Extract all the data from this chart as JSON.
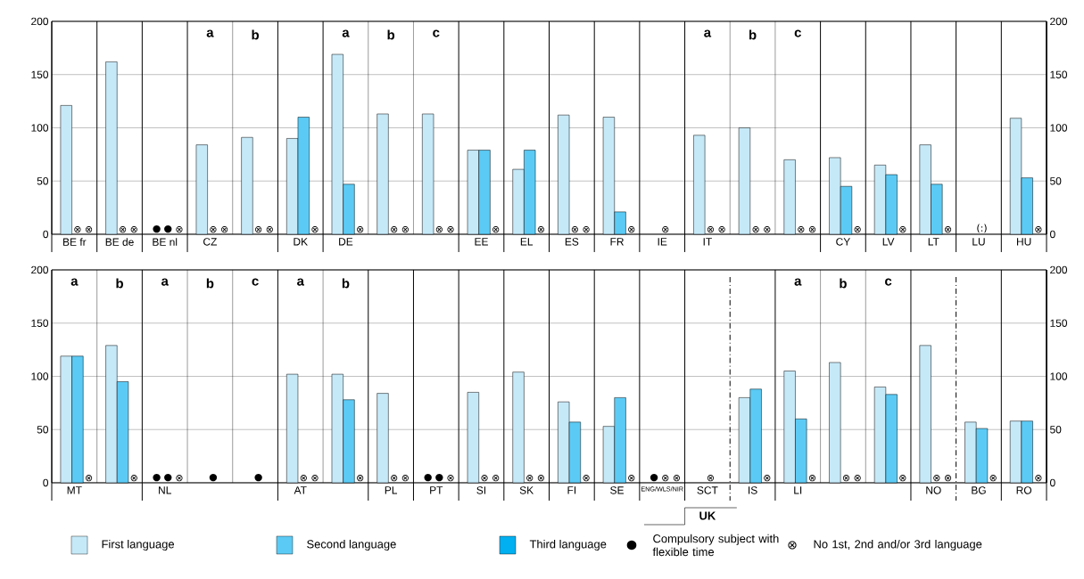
{
  "chart_data": [
    {
      "type": "bar",
      "categories": [
        "BE fr",
        "BE de",
        "BE nl",
        "CZ",
        null,
        "DK",
        "DE",
        null,
        null,
        "EE",
        "EL",
        "ES",
        "FR",
        "IE",
        "IT",
        null,
        null,
        "CY",
        "LV",
        "LT",
        "LU",
        "HU"
      ],
      "series": [
        {
          "color": "#c6e9f8",
          "values": [
            121,
            162,
            null,
            84,
            91,
            90,
            169,
            113,
            113,
            79,
            61,
            112,
            110,
            null,
            93,
            100,
            70,
            72,
            65,
            84,
            null,
            109
          ],
          "value_labels": [
            null,
            null,
            "●",
            null,
            null,
            null,
            null,
            null,
            null,
            null,
            null,
            null,
            null,
            null,
            null,
            null,
            null,
            null,
            null,
            null,
            null,
            null
          ]
        },
        {
          "color": "#5bcbf5",
          "values": [
            null,
            null,
            null,
            null,
            null,
            110,
            47,
            null,
            null,
            79,
            79,
            null,
            21,
            null,
            null,
            null,
            null,
            45,
            56,
            47,
            null,
            53
          ],
          "value_labels": [
            "⊗",
            "⊗",
            "●",
            "⊗",
            "⊗",
            null,
            null,
            "⊗",
            "⊗",
            null,
            null,
            "⊗",
            null,
            "⊗",
            "⊗",
            "⊗",
            "⊗",
            null,
            null,
            null,
            "(:)",
            null
          ]
        },
        {
          "values": [
            null,
            null,
            null,
            null,
            null,
            null,
            null,
            null,
            null,
            null,
            null,
            null,
            null,
            null,
            null,
            null,
            null,
            null,
            null,
            null,
            null,
            null
          ],
          "value_labels": [
            "⊗",
            "⊗",
            "⊗",
            "⊗",
            "⊗",
            "⊗",
            "⊗",
            "⊗",
            "⊗",
            "⊗",
            "⊗",
            "⊗",
            "⊗",
            null,
            "⊗",
            "⊗",
            "⊗",
            "⊗",
            "⊗",
            "⊗",
            null,
            "⊗"
          ]
        }
      ],
      "ylim": [
        0,
        200
      ],
      "yticks": [
        0,
        50,
        100,
        150,
        200
      ],
      "y2lim": [
        0,
        200
      ],
      "y2ticks": [
        0,
        50,
        100,
        150,
        200
      ],
      "grid": true,
      "annotations": [
        "a",
        "b",
        "a",
        "b",
        "c",
        "a",
        "b",
        "c"
      ]
    },
    {
      "type": "bar",
      "categories": [
        "MT",
        null,
        "NL",
        null,
        null,
        "AT",
        null,
        "PL",
        "PT",
        "SI",
        "SK",
        "FI",
        "SE",
        "ENG/WLS/NIR",
        "SCT",
        "IS",
        "LI",
        null,
        null,
        "NO",
        "BG",
        "RO"
      ],
      "series": [
        {
          "name": "First language",
          "color": "#c6e9f8",
          "values": [
            119,
            129,
            null,
            null,
            null,
            102,
            102,
            84,
            null,
            85,
            104,
            76,
            53,
            null,
            null,
            80,
            105,
            113,
            90,
            129,
            57,
            58
          ],
          "value_labels": [
            null,
            null,
            "●",
            null,
            null,
            null,
            null,
            null,
            "●",
            null,
            null,
            null,
            null,
            "●",
            null,
            null,
            null,
            null,
            null,
            null,
            null,
            null
          ]
        },
        {
          "name": "Second language",
          "color": "#5bcbf5",
          "values": [
            119,
            95,
            null,
            null,
            null,
            null,
            78,
            null,
            null,
            null,
            null,
            57,
            80,
            null,
            null,
            88,
            60,
            null,
            83,
            null,
            51,
            58
          ],
          "value_labels": [
            null,
            null,
            "●",
            "●",
            "●",
            "⊗",
            null,
            "⊗",
            "●",
            "⊗",
            "⊗",
            null,
            null,
            "⊗",
            "⊗",
            null,
            null,
            "⊗",
            null,
            "⊗",
            null,
            null
          ]
        },
        {
          "name": "Third language",
          "color": "#00b0f0",
          "values": [
            null,
            null,
            null,
            null,
            null,
            null,
            null,
            null,
            null,
            null,
            null,
            null,
            null,
            null,
            null,
            null,
            null,
            null,
            null,
            null,
            null,
            null
          ],
          "value_labels": [
            "⊗",
            "⊗",
            "⊗",
            null,
            null,
            "⊗",
            "⊗",
            "⊗",
            "⊗",
            "⊗",
            "⊗",
            "⊗",
            "⊗",
            "⊗",
            null,
            "⊗",
            "⊗",
            "⊗",
            "⊗",
            "⊗",
            "⊗",
            "⊗"
          ]
        }
      ],
      "ylim": [
        0,
        200
      ],
      "yticks": [
        0,
        50,
        100,
        150,
        200
      ],
      "y2lim": [
        0,
        200
      ],
      "y2ticks": [
        0,
        50,
        100,
        150,
        200
      ],
      "grid": true,
      "legend": "bottom",
      "annotations": [
        "a",
        "b",
        "a",
        "b",
        "c",
        "a",
        "b",
        "a",
        "b",
        "c",
        "UK",
        "●",
        "Compulsory subject with flexible time",
        "⊗",
        "No 1st, 2nd and/or 3rd language"
      ]
    }
  ]
}
